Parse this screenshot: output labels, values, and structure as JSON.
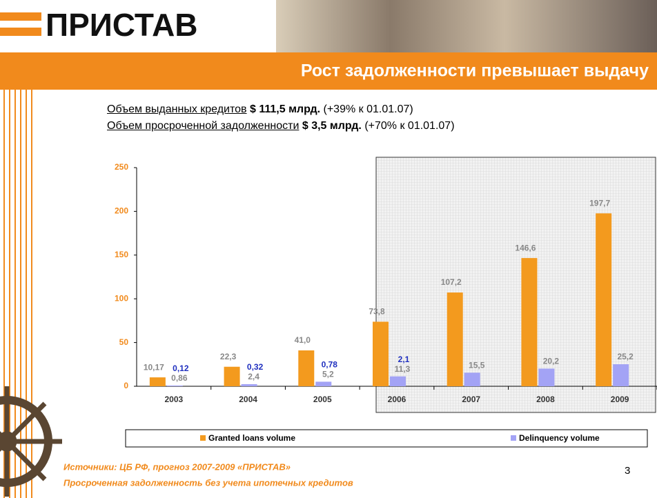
{
  "header": {
    "logo": "ПРИСТАВ",
    "title": "Рост задолженности превышает выдачу"
  },
  "summary": [
    {
      "label": "Объем  выданных кредитов",
      "amount": "$ 111,5 млрд.",
      "change": "(+39% к 01.01.07)"
    },
    {
      "label": "Объем просроченной задолженности",
      "amount": "$ 3,5 млрд.",
      "change": "(+70% к 01.01.07)"
    }
  ],
  "chart_data": {
    "type": "bar",
    "categories": [
      "2003",
      "2004",
      "2005",
      "2006",
      "2007",
      "2008",
      "2009"
    ],
    "series": [
      {
        "name": "Granted loans volume",
        "color": "#f39a1e",
        "values": [
          10.17,
          22.3,
          41.0,
          73.8,
          107.2,
          146.6,
          197.7
        ],
        "value_labels": [
          "10,17",
          "22,3",
          "41,0",
          "73,8",
          "107,2",
          "146,6",
          "197,7"
        ]
      },
      {
        "name": "Delinquency volume",
        "color": "#a3a3f5",
        "values": [
          0.86,
          2.4,
          5.2,
          11.3,
          15.5,
          20.2,
          25.2
        ],
        "value_labels": [
          "0,86",
          "2,4",
          "5,2",
          "11,3",
          "15,5",
          "20,2",
          "25,2"
        ]
      }
    ],
    "annotations": [
      "0,12",
      "0,32",
      "0,78",
      "2,1"
    ],
    "ylim": [
      0,
      250
    ],
    "yticks": [
      0,
      50,
      100,
      150,
      200,
      250
    ],
    "legend": "bottom"
  },
  "footer": {
    "sources": "Источники:  ЦБ РФ, прогноз 2007-2009 «ПРИСТАВ»",
    "note": "Просроченная задолженность без учета ипотечных кредитов",
    "page": "3"
  }
}
